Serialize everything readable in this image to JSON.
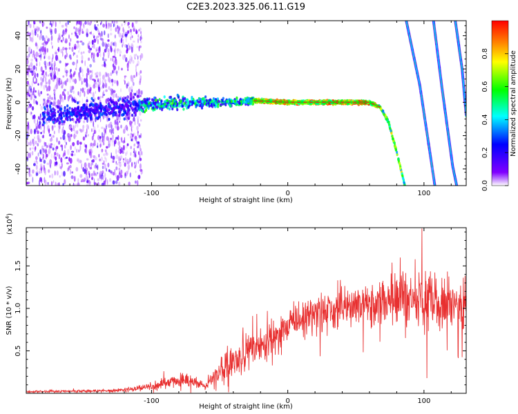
{
  "title": "C2E3.2023.325.06.11.G19",
  "chart_data": [
    {
      "type": "heatmap",
      "name": "radio-occultation-spectrogram",
      "xlabel": "Height of straight line (km)",
      "ylabel": "Frequency (Hz)",
      "xlim": [
        -192,
        131
      ],
      "ylim": [
        -50,
        49
      ],
      "xticks": [
        -100,
        0,
        100
      ],
      "yticks": [
        -40,
        -20,
        0,
        20,
        40
      ],
      "colorbar": {
        "label": "Normalized spectral amplitude",
        "range": [
          0,
          1
        ],
        "ticks": [
          "0.0",
          "0.2",
          "0.4",
          "0.6",
          "0.8"
        ],
        "stops": [
          "#ffffff",
          "#8000ff",
          "#0000ff",
          "#00ffff",
          "#00ff00",
          "#ffff00",
          "#ff8000",
          "#ff0000"
        ]
      },
      "features": [
        {
          "label": "main tone",
          "x": [
            -180,
            -120,
            -80,
            -40,
            -25,
            0,
            40,
            60,
            68,
            74,
            80,
            86
          ],
          "y": [
            -8,
            -3,
            0,
            0,
            1,
            0,
            0,
            0,
            -3,
            -12,
            -30,
            -50
          ]
        },
        {
          "label": "image 1",
          "x": [
            87,
            97,
            108
          ],
          "y": [
            49,
            10,
            -50
          ]
        },
        {
          "label": "image 2",
          "x": [
            107,
            113,
            121,
            124
          ],
          "y": [
            49,
            10,
            -38,
            -50
          ]
        },
        {
          "label": "image 3",
          "x": [
            123,
            128,
            131
          ],
          "y": [
            49,
            20,
            -8
          ]
        }
      ]
    },
    {
      "type": "line",
      "name": "snr-profile",
      "xlabel": "Height of straight line (km)",
      "ylabel": "SNR (10 * v/v)",
      "y_multiplier": "(x10",
      "y_multiplier_exp": "4",
      "y_multiplier_close": ")",
      "xlim": [
        -192,
        131
      ],
      "ylim": [
        0,
        1.95
      ],
      "xticks": [
        -100,
        0,
        100
      ],
      "yticks": [
        0.5,
        1.0,
        1.5
      ],
      "line_color": "#e83030",
      "envelope": {
        "x": [
          -192,
          -130,
          -115,
          -100,
          -90,
          -75,
          -65,
          -60,
          -55,
          -45,
          -35,
          -25,
          -15,
          0,
          20,
          40,
          60,
          80,
          100,
          115,
          131
        ],
        "mean": [
          0.02,
          0.03,
          0.05,
          0.08,
          0.12,
          0.16,
          0.12,
          0.08,
          0.18,
          0.32,
          0.42,
          0.5,
          0.62,
          0.78,
          0.95,
          1.0,
          1.05,
          1.1,
          1.1,
          1.08,
          1.05
        ],
        "amp": [
          0.015,
          0.02,
          0.03,
          0.05,
          0.07,
          0.09,
          0.07,
          0.04,
          0.14,
          0.2,
          0.24,
          0.24,
          0.25,
          0.26,
          0.27,
          0.29,
          0.3,
          0.33,
          0.38,
          0.35,
          0.32
        ]
      }
    }
  ]
}
